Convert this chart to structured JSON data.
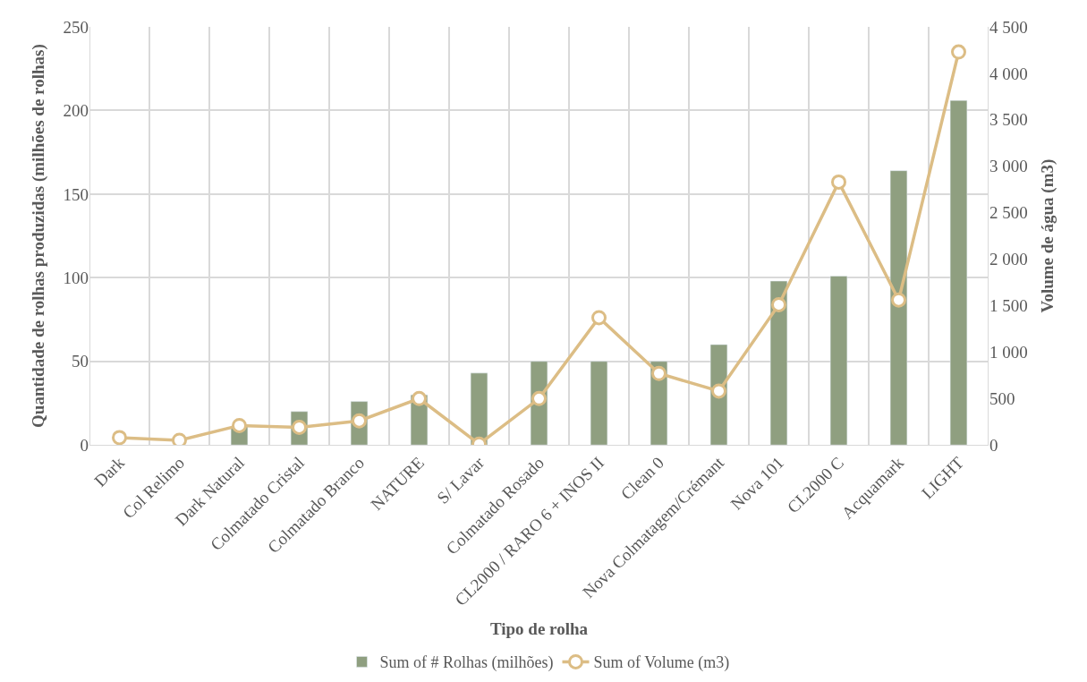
{
  "chart_data": {
    "type": "bar",
    "xlabel": "Tipo de rolha",
    "ylabel": "Quantidade de rolhas produzidas (milhões de rolhas)",
    "y2label": "Volume de água (m3)",
    "categories": [
      "Dark",
      "Col Relimo",
      "Dark Natural",
      "Colmatado Cristal",
      "Colmatado Branco",
      "NATURE",
      "S/ Lavar",
      "Colmatado Rosado",
      "CL2000 / RARO 6 + INOS II",
      "Clean 0",
      "Nova Colmatagem/Crémant",
      "Nova 101",
      "CL2000 C",
      "Acquamark",
      "LIGHT"
    ],
    "series": [
      {
        "name": "Sum of # Rolhas (milhões)",
        "color": "#8f9f80",
        "values": [
          null,
          null,
          11,
          20,
          26,
          30,
          43,
          50,
          50,
          50,
          60,
          98,
          101,
          164,
          206
        ]
      },
      {
        "name": "Sum of Volume (m3)",
        "type": "line",
        "axis": "y2",
        "color": "#dcbd85",
        "marker": "circle",
        "values": [
          80,
          50,
          210,
          190,
          260,
          500,
          10,
          500,
          1370,
          770,
          580,
          1510,
          2830,
          1560,
          4230
        ]
      }
    ],
    "ylim": [
      0,
      250
    ],
    "yticks": [
      0,
      50,
      100,
      150,
      200,
      250
    ],
    "y2lim": [
      0,
      4500
    ],
    "y2ticks": [
      0,
      {
        "value": 500,
        "label": "500"
      },
      {
        "value": 1000,
        "label": "1 000"
      },
      {
        "value": 1500,
        "label": "1 500"
      },
      {
        "value": 2000,
        "label": "2 000"
      },
      {
        "value": 2500,
        "label": "2 500"
      },
      {
        "value": 3000,
        "label": "3 000"
      },
      {
        "value": 3500,
        "label": "3 500"
      },
      {
        "value": 4000,
        "label": "4 000"
      },
      {
        "value": 4500,
        "label": "4 500"
      }
    ],
    "grid": true,
    "legend": "bottom"
  }
}
